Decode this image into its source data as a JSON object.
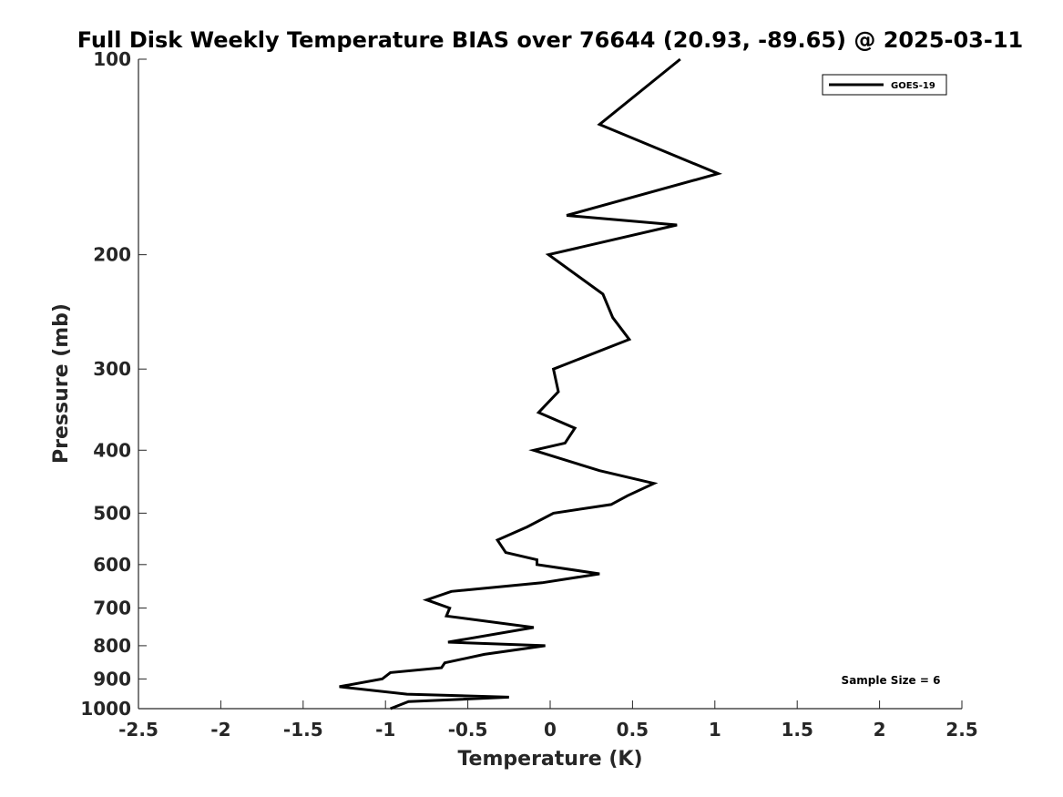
{
  "chart_data": {
    "type": "line",
    "title": "Full Disk Weekly Temperature BIAS over 76644 (20.93, -89.65) @ 2025-03-11",
    "xlabel": "Temperature (K)",
    "ylabel": "Pressure (mb)",
    "xlim": [
      -2.5,
      2.5
    ],
    "ylim": [
      100,
      1000
    ],
    "y_scale": "log",
    "y_reversed": true,
    "x_ticks": [
      "-2.5",
      "-2",
      "-1.5",
      "-1",
      "-0.5",
      "0",
      "0.5",
      "1",
      "1.5",
      "2",
      "2.5"
    ],
    "y_ticks": [
      "100",
      "200",
      "300",
      "400",
      "500",
      "600",
      "700",
      "800",
      "900",
      "1000"
    ],
    "grid": false,
    "legend_position": "top-right",
    "series": [
      {
        "name": "GOES-19",
        "color": "#000000",
        "points": [
          {
            "x": 0.79,
            "y": 100
          },
          {
            "x": 0.3,
            "y": 126
          },
          {
            "x": 1.02,
            "y": 150
          },
          {
            "x": 0.1,
            "y": 174
          },
          {
            "x": 0.77,
            "y": 180
          },
          {
            "x": -0.01,
            "y": 200
          },
          {
            "x": 0.32,
            "y": 230
          },
          {
            "x": 0.38,
            "y": 250
          },
          {
            "x": 0.48,
            "y": 270
          },
          {
            "x": 0.02,
            "y": 300
          },
          {
            "x": 0.05,
            "y": 325
          },
          {
            "x": -0.07,
            "y": 350
          },
          {
            "x": 0.15,
            "y": 370
          },
          {
            "x": 0.09,
            "y": 390
          },
          {
            "x": -0.1,
            "y": 400
          },
          {
            "x": 0.3,
            "y": 430
          },
          {
            "x": 0.63,
            "y": 450
          },
          {
            "x": 0.47,
            "y": 470
          },
          {
            "x": 0.37,
            "y": 485
          },
          {
            "x": 0.02,
            "y": 500
          },
          {
            "x": -0.14,
            "y": 525
          },
          {
            "x": -0.32,
            "y": 550
          },
          {
            "x": -0.27,
            "y": 575
          },
          {
            "x": -0.08,
            "y": 590
          },
          {
            "x": -0.08,
            "y": 600
          },
          {
            "x": 0.3,
            "y": 620
          },
          {
            "x": -0.05,
            "y": 640
          },
          {
            "x": -0.6,
            "y": 660
          },
          {
            "x": -0.75,
            "y": 680
          },
          {
            "x": -0.61,
            "y": 700
          },
          {
            "x": -0.63,
            "y": 720
          },
          {
            "x": -0.1,
            "y": 750
          },
          {
            "x": -0.62,
            "y": 790
          },
          {
            "x": -0.03,
            "y": 800
          },
          {
            "x": -0.4,
            "y": 825
          },
          {
            "x": -0.64,
            "y": 850
          },
          {
            "x": -0.66,
            "y": 865
          },
          {
            "x": -0.97,
            "y": 880
          },
          {
            "x": -1.02,
            "y": 900
          },
          {
            "x": -1.28,
            "y": 925
          },
          {
            "x": -0.87,
            "y": 950
          },
          {
            "x": -0.25,
            "y": 960
          },
          {
            "x": -0.86,
            "y": 975
          },
          {
            "x": -0.97,
            "y": 1000
          }
        ]
      }
    ],
    "annotation": "Sample Size = 6"
  }
}
